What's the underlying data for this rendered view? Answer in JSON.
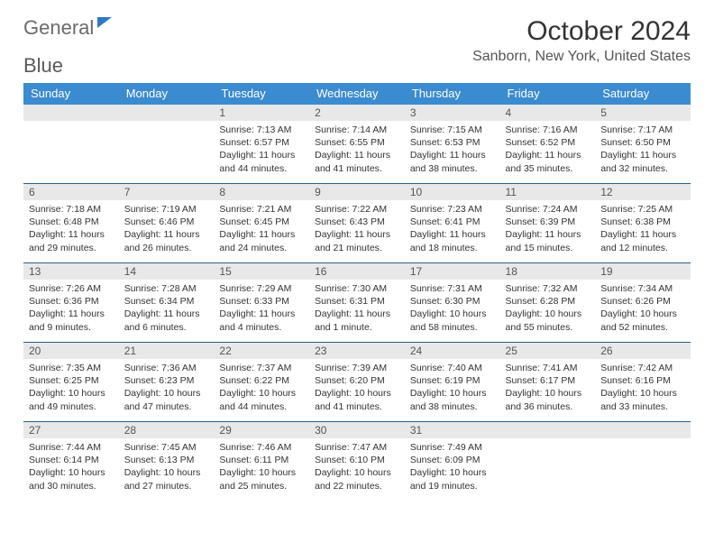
{
  "brand": {
    "part1": "General",
    "part2": "Blue"
  },
  "title": "October 2024",
  "location": "Sanborn, New York, United States",
  "headers": [
    "Sunday",
    "Monday",
    "Tuesday",
    "Wednesday",
    "Thursday",
    "Friday",
    "Saturday"
  ],
  "style": {
    "header_bg": "#3b8bd0",
    "header_fg": "#ffffff",
    "daynum_bg": "#e8e8e8",
    "row_border": "#2b5f8a"
  },
  "weeks": [
    [
      {
        "n": "",
        "sr": "",
        "ss": "",
        "dl": ""
      },
      {
        "n": "",
        "sr": "",
        "ss": "",
        "dl": ""
      },
      {
        "n": "1",
        "sr": "7:13 AM",
        "ss": "6:57 PM",
        "dl": "11 hours and 44 minutes."
      },
      {
        "n": "2",
        "sr": "7:14 AM",
        "ss": "6:55 PM",
        "dl": "11 hours and 41 minutes."
      },
      {
        "n": "3",
        "sr": "7:15 AM",
        "ss": "6:53 PM",
        "dl": "11 hours and 38 minutes."
      },
      {
        "n": "4",
        "sr": "7:16 AM",
        "ss": "6:52 PM",
        "dl": "11 hours and 35 minutes."
      },
      {
        "n": "5",
        "sr": "7:17 AM",
        "ss": "6:50 PM",
        "dl": "11 hours and 32 minutes."
      }
    ],
    [
      {
        "n": "6",
        "sr": "7:18 AM",
        "ss": "6:48 PM",
        "dl": "11 hours and 29 minutes."
      },
      {
        "n": "7",
        "sr": "7:19 AM",
        "ss": "6:46 PM",
        "dl": "11 hours and 26 minutes."
      },
      {
        "n": "8",
        "sr": "7:21 AM",
        "ss": "6:45 PM",
        "dl": "11 hours and 24 minutes."
      },
      {
        "n": "9",
        "sr": "7:22 AM",
        "ss": "6:43 PM",
        "dl": "11 hours and 21 minutes."
      },
      {
        "n": "10",
        "sr": "7:23 AM",
        "ss": "6:41 PM",
        "dl": "11 hours and 18 minutes."
      },
      {
        "n": "11",
        "sr": "7:24 AM",
        "ss": "6:39 PM",
        "dl": "11 hours and 15 minutes."
      },
      {
        "n": "12",
        "sr": "7:25 AM",
        "ss": "6:38 PM",
        "dl": "11 hours and 12 minutes."
      }
    ],
    [
      {
        "n": "13",
        "sr": "7:26 AM",
        "ss": "6:36 PM",
        "dl": "11 hours and 9 minutes."
      },
      {
        "n": "14",
        "sr": "7:28 AM",
        "ss": "6:34 PM",
        "dl": "11 hours and 6 minutes."
      },
      {
        "n": "15",
        "sr": "7:29 AM",
        "ss": "6:33 PM",
        "dl": "11 hours and 4 minutes."
      },
      {
        "n": "16",
        "sr": "7:30 AM",
        "ss": "6:31 PM",
        "dl": "11 hours and 1 minute."
      },
      {
        "n": "17",
        "sr": "7:31 AM",
        "ss": "6:30 PM",
        "dl": "10 hours and 58 minutes."
      },
      {
        "n": "18",
        "sr": "7:32 AM",
        "ss": "6:28 PM",
        "dl": "10 hours and 55 minutes."
      },
      {
        "n": "19",
        "sr": "7:34 AM",
        "ss": "6:26 PM",
        "dl": "10 hours and 52 minutes."
      }
    ],
    [
      {
        "n": "20",
        "sr": "7:35 AM",
        "ss": "6:25 PM",
        "dl": "10 hours and 49 minutes."
      },
      {
        "n": "21",
        "sr": "7:36 AM",
        "ss": "6:23 PM",
        "dl": "10 hours and 47 minutes."
      },
      {
        "n": "22",
        "sr": "7:37 AM",
        "ss": "6:22 PM",
        "dl": "10 hours and 44 minutes."
      },
      {
        "n": "23",
        "sr": "7:39 AM",
        "ss": "6:20 PM",
        "dl": "10 hours and 41 minutes."
      },
      {
        "n": "24",
        "sr": "7:40 AM",
        "ss": "6:19 PM",
        "dl": "10 hours and 38 minutes."
      },
      {
        "n": "25",
        "sr": "7:41 AM",
        "ss": "6:17 PM",
        "dl": "10 hours and 36 minutes."
      },
      {
        "n": "26",
        "sr": "7:42 AM",
        "ss": "6:16 PM",
        "dl": "10 hours and 33 minutes."
      }
    ],
    [
      {
        "n": "27",
        "sr": "7:44 AM",
        "ss": "6:14 PM",
        "dl": "10 hours and 30 minutes."
      },
      {
        "n": "28",
        "sr": "7:45 AM",
        "ss": "6:13 PM",
        "dl": "10 hours and 27 minutes."
      },
      {
        "n": "29",
        "sr": "7:46 AM",
        "ss": "6:11 PM",
        "dl": "10 hours and 25 minutes."
      },
      {
        "n": "30",
        "sr": "7:47 AM",
        "ss": "6:10 PM",
        "dl": "10 hours and 22 minutes."
      },
      {
        "n": "31",
        "sr": "7:49 AM",
        "ss": "6:09 PM",
        "dl": "10 hours and 19 minutes."
      },
      {
        "n": "",
        "sr": "",
        "ss": "",
        "dl": ""
      },
      {
        "n": "",
        "sr": "",
        "ss": "",
        "dl": ""
      }
    ]
  ],
  "labels": {
    "sunrise": "Sunrise: ",
    "sunset": "Sunset: ",
    "daylight": "Daylight: "
  }
}
